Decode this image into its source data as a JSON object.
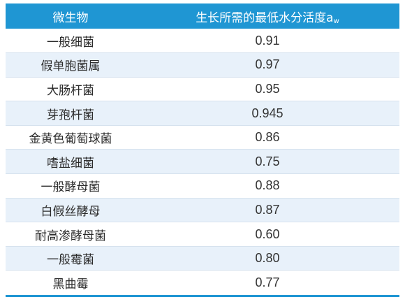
{
  "table": {
    "header": {
      "col1": "微生物",
      "col2_main": "生长所需的最低水分活度a",
      "col2_sub": "w"
    },
    "rows": [
      {
        "name": "一般细菌",
        "value": "0.91"
      },
      {
        "name": "假单胞菌属",
        "value": "0.97"
      },
      {
        "name": "大肠杆菌",
        "value": "0.95"
      },
      {
        "name": "芽孢杆菌",
        "value": "0.945"
      },
      {
        "name": "金黄色葡萄球菌",
        "value": "0.86"
      },
      {
        "name": "嗜盐细菌",
        "value": "0.75"
      },
      {
        "name": "一般酵母菌",
        "value": "0.88"
      },
      {
        "name": "白假丝酵母",
        "value": "0.87"
      },
      {
        "name": "耐高渗酵母菌",
        "value": "0.60"
      },
      {
        "name": "一般霉菌",
        "value": "0.80"
      },
      {
        "name": "黑曲霉",
        "value": "0.77"
      }
    ]
  },
  "colors": {
    "header_bg": "#1f96d3",
    "alt_row_bg": "#e8f1fa"
  }
}
